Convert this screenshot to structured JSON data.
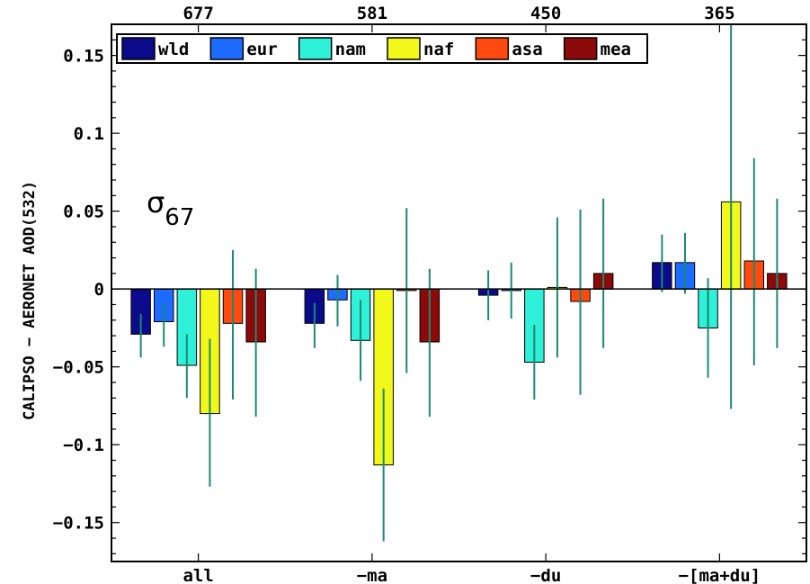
{
  "chart_data": {
    "type": "bar",
    "ylabel": "CALIPSO − AERONET AOD(532)",
    "annotation": {
      "symbol": "σ",
      "subscript": "67"
    },
    "ylim": [
      -0.175,
      0.17
    ],
    "yticks": [
      0.15,
      0.1,
      0.05,
      0,
      -0.05,
      -0.1,
      -0.15
    ],
    "ytick_labels": [
      "0.15",
      "0.1",
      "0.05",
      "0",
      "−0.05",
      "−0.1",
      "−0.15"
    ],
    "categories": [
      "all",
      "−ma",
      "−du",
      "−[ma+du]"
    ],
    "top_labels": [
      "677",
      "581",
      "450",
      "365"
    ],
    "legend_position": "top-left",
    "grid": false,
    "error_bar_color": "#1a8a70",
    "series": [
      {
        "name": "wld",
        "color": "#0a0a8a",
        "values": [
          -0.029,
          -0.022,
          -0.004,
          0.017
        ],
        "err_low": [
          -0.044,
          -0.038,
          -0.02,
          -0.002
        ],
        "err_high": [
          -0.016,
          -0.009,
          0.012,
          0.035
        ]
      },
      {
        "name": "eur",
        "color": "#1e6bff",
        "values": [
          -0.021,
          -0.007,
          -0.001,
          0.017
        ],
        "err_low": [
          -0.037,
          -0.024,
          -0.019,
          -0.003
        ],
        "err_high": [
          -0.009,
          0.009,
          0.017,
          0.036
        ]
      },
      {
        "name": "nam",
        "color": "#2ff0d8",
        "values": [
          -0.049,
          -0.033,
          -0.047,
          -0.025
        ],
        "err_low": [
          -0.07,
          -0.059,
          -0.071,
          -0.057
        ],
        "err_high": [
          -0.029,
          -0.007,
          -0.023,
          0.007
        ]
      },
      {
        "name": "naf",
        "color": "#f2f91a",
        "values": [
          -0.08,
          -0.113,
          0.001,
          0.056
        ],
        "err_low": [
          -0.127,
          -0.162,
          -0.044,
          -0.077
        ],
        "err_high": [
          -0.032,
          -0.064,
          0.046,
          0.17
        ]
      },
      {
        "name": "asa",
        "color": "#ff4a0f",
        "values": [
          -0.022,
          -0.001,
          -0.008,
          0.018
        ],
        "err_low": [
          -0.071,
          -0.054,
          -0.068,
          -0.049
        ],
        "err_high": [
          0.025,
          0.052,
          0.051,
          0.084
        ]
      },
      {
        "name": "mea",
        "color": "#8c0a0a",
        "values": [
          -0.034,
          -0.034,
          0.01,
          0.01
        ],
        "err_low": [
          -0.082,
          -0.082,
          -0.038,
          -0.038
        ],
        "err_high": [
          0.013,
          0.013,
          0.058,
          0.058
        ]
      }
    ]
  }
}
